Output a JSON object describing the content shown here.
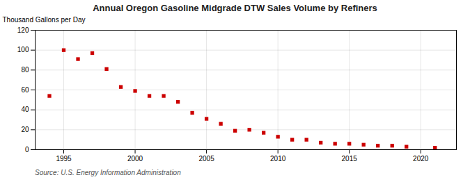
{
  "chart_data": {
    "type": "scatter",
    "title": "Annual Oregon Gasoline Midgrade DTW Sales Volume by Refiners",
    "ylabel": "Thousand Gallons per Day",
    "annotation": "Source: U.S. Energy Information Administration",
    "x": [
      1994,
      1995,
      1996,
      1997,
      1998,
      1999,
      2000,
      2001,
      2002,
      2003,
      2004,
      2005,
      2006,
      2007,
      2008,
      2009,
      2010,
      2011,
      2012,
      2013,
      2014,
      2015,
      2016,
      2017,
      2018,
      2019,
      2021
    ],
    "values": [
      54,
      100,
      91,
      97,
      81,
      63,
      59,
      54,
      54,
      48,
      37,
      31,
      26,
      19,
      20,
      17,
      13,
      10,
      10,
      7,
      6,
      6,
      5,
      4,
      4,
      3,
      2
    ],
    "color": "#cc0000",
    "marker": "square",
    "xlim": [
      1993,
      2022.5
    ],
    "xticks": [
      1995,
      2000,
      2005,
      2010,
      2015,
      2020
    ],
    "ylim": [
      0,
      120
    ],
    "yticks": [
      0,
      20,
      40,
      60,
      80,
      100,
      120
    ],
    "grid": true
  }
}
